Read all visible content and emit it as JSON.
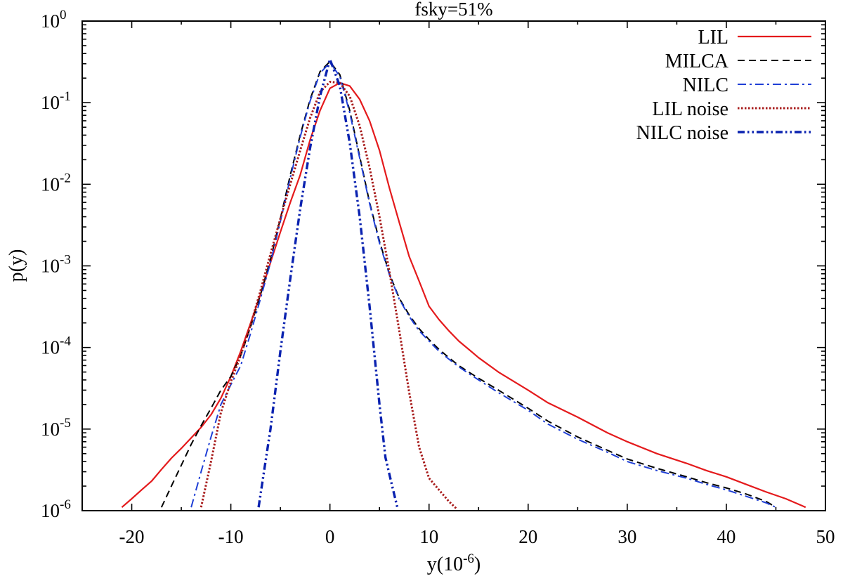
{
  "chart_data": {
    "type": "line",
    "title": "fsky=51%",
    "xlabel": "y(10",
    "xlabel_sup": "-6",
    "xlabel_end": ")",
    "ylabel": "p(y)",
    "xlim": [
      -25,
      50
    ],
    "ylim": [
      1e-06,
      1
    ],
    "yscale": "log",
    "grid": false,
    "legend_position": "top-right",
    "x_ticks": [
      -20,
      -10,
      0,
      10,
      20,
      30,
      40,
      50
    ],
    "x_tick_labels": [
      "-20",
      "-10",
      "0",
      "10",
      "20",
      "30",
      "40",
      "50"
    ],
    "y_ticks": [
      {
        "value": 1e-06,
        "base": "10",
        "exp": "-6"
      },
      {
        "value": 1e-05,
        "base": "10",
        "exp": "-5"
      },
      {
        "value": 0.0001,
        "base": "10",
        "exp": "-4"
      },
      {
        "value": 0.001,
        "base": "10",
        "exp": "-3"
      },
      {
        "value": 0.01,
        "base": "10",
        "exp": "-2"
      },
      {
        "value": 0.1,
        "base": "10",
        "exp": "-1"
      },
      {
        "value": 1,
        "base": "10",
        "exp": "0"
      }
    ],
    "series": [
      {
        "name": "LIL",
        "color": "#e41a1c",
        "dash": "",
        "width": 2.2,
        "x": [
          -21,
          -20,
          -19,
          -18,
          -17,
          -16,
          -15,
          -14,
          -13,
          -12,
          -11,
          -10,
          -9,
          -8,
          -7,
          -6,
          -5,
          -4,
          -3,
          -2,
          -1,
          0,
          1,
          2,
          3,
          4,
          5,
          6,
          7,
          8,
          9,
          10,
          11,
          12,
          13,
          14,
          15,
          17,
          20,
          22,
          25,
          28,
          30,
          33,
          36,
          38,
          40,
          42,
          44,
          46,
          48
        ],
        "y": [
          1.1e-06,
          1.4e-06,
          1.8e-06,
          2.3e-06,
          3.2e-06,
          4.4e-06,
          5.8e-06,
          7.8e-06,
          1.05e-05,
          1.5e-05,
          2.4e-05,
          4.4e-05,
          9e-05,
          0.0002,
          0.00045,
          0.0011,
          0.0026,
          0.006,
          0.013,
          0.035,
          0.08,
          0.15,
          0.175,
          0.16,
          0.11,
          0.06,
          0.026,
          0.009,
          0.0034,
          0.0013,
          0.00065,
          0.00032,
          0.00022,
          0.00016,
          0.00012,
          9.5e-05,
          7.5e-05,
          5e-05,
          3e-05,
          2.1e-05,
          1.4e-05,
          9e-06,
          7e-06,
          5e-06,
          3.8e-06,
          3.1e-06,
          2.6e-06,
          2.1e-06,
          1.7e-06,
          1.4e-06,
          1.1e-06
        ]
      },
      {
        "name": "MILCA",
        "color": "#000000",
        "dash": "10,6",
        "width": 2,
        "x": [
          -17,
          -16,
          -15,
          -14,
          -13,
          -12,
          -11,
          -10,
          -9,
          -8,
          -7,
          -6,
          -5,
          -4,
          -3,
          -2,
          -1,
          0,
          1,
          2,
          3,
          4,
          5,
          6,
          7,
          8,
          9,
          10,
          11,
          12,
          13,
          14,
          15,
          17,
          20,
          22,
          25,
          28,
          30,
          33,
          36,
          38,
          40,
          42,
          44,
          45
        ],
        "y": [
          1.1e-06,
          2e-06,
          3.6e-06,
          6.5e-06,
          1.1e-05,
          1.8e-05,
          3e-05,
          4.4e-05,
          8e-05,
          0.00018,
          0.00045,
          0.0012,
          0.0038,
          0.013,
          0.04,
          0.11,
          0.24,
          0.32,
          0.22,
          0.08,
          0.022,
          0.006,
          0.002,
          0.0008,
          0.0004,
          0.00025,
          0.00017,
          0.000125,
          9.5e-05,
          7.5e-05,
          6e-05,
          5e-05,
          4.2e-05,
          3e-05,
          1.8e-05,
          1.25e-05,
          8e-06,
          5.5e-06,
          4.3e-06,
          3.3e-06,
          2.6e-06,
          2.2e-06,
          1.9e-06,
          1.6e-06,
          1.3e-06,
          1.1e-06
        ]
      },
      {
        "name": "NILC",
        "color": "#1f3fd6",
        "dash": "12,5,3,5",
        "width": 2,
        "x": [
          -14,
          -13,
          -12,
          -11,
          -10,
          -9,
          -8,
          -7,
          -6,
          -5,
          -4,
          -3,
          -2,
          -1,
          0,
          1,
          2,
          3,
          4,
          5,
          6,
          7,
          8,
          9,
          10,
          11,
          12,
          13,
          14,
          15,
          17,
          20,
          22,
          25,
          28,
          30,
          33,
          36,
          38,
          40,
          42,
          44,
          45
        ],
        "y": [
          1.1e-06,
          3e-06,
          8e-06,
          2e-05,
          3.5e-05,
          6e-05,
          0.00015,
          0.0004,
          0.0011,
          0.0035,
          0.012,
          0.038,
          0.105,
          0.23,
          0.31,
          0.21,
          0.075,
          0.021,
          0.0058,
          0.0019,
          0.00078,
          0.00039,
          0.00024,
          0.00016,
          0.00012,
          9e-05,
          7.2e-05,
          5.8e-05,
          4.8e-05,
          4e-05,
          2.8e-05,
          1.7e-05,
          1.15e-05,
          7.5e-06,
          5.2e-06,
          4e-06,
          3.1e-06,
          2.5e-06,
          2.1e-06,
          1.8e-06,
          1.5e-06,
          1.25e-06,
          1.1e-06
        ]
      },
      {
        "name": "LIL noise",
        "color": "#a81c1c",
        "dash": "2.5,2.5",
        "width": 3,
        "x": [
          -13,
          -12,
          -11,
          -10,
          -9,
          -8,
          -7,
          -6,
          -5,
          -4,
          -3,
          -2,
          -1,
          0,
          1,
          2,
          3,
          4,
          5,
          6,
          7,
          8,
          9,
          10,
          11,
          12,
          12.8
        ],
        "y": [
          1.1e-06,
          4e-06,
          1.6e-05,
          3.8e-05,
          8e-05,
          0.00019,
          0.0005,
          0.0014,
          0.0038,
          0.01,
          0.026,
          0.065,
          0.135,
          0.18,
          0.175,
          0.12,
          0.052,
          0.016,
          0.004,
          0.00085,
          0.00016,
          2.8e-05,
          6e-06,
          2.5e-06,
          1.8e-06,
          1.3e-06,
          1.05e-06
        ]
      },
      {
        "name": "NILC noise",
        "color": "#0a22b0",
        "dash": "10,4,2.5,4,2.5,4",
        "width": 3.4,
        "x": [
          -7.2,
          -6.5,
          -6,
          -5,
          -4,
          -3,
          -2,
          -1,
          0,
          1,
          2,
          3,
          4,
          5,
          5.6,
          6.2,
          6.8
        ],
        "y": [
          1.1e-06,
          4e-06,
          1e-05,
          9e-05,
          0.0007,
          0.005,
          0.028,
          0.12,
          0.34,
          0.16,
          0.032,
          0.004,
          0.00032,
          2e-05,
          4.5e-06,
          2.2e-06,
          1.1e-06
        ]
      }
    ]
  }
}
